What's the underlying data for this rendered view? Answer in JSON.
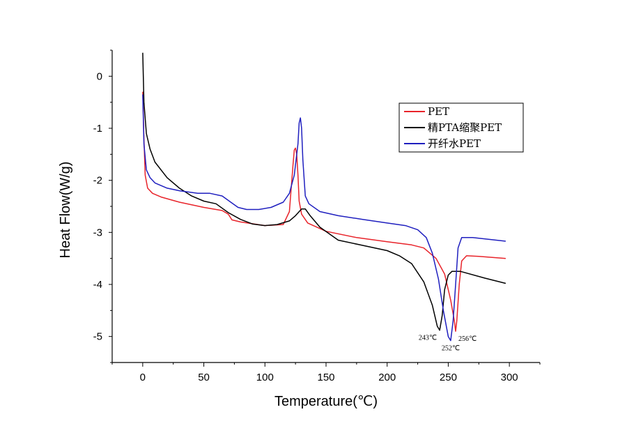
{
  "chart_data": {
    "type": "line",
    "xlabel": "Temperature(℃)",
    "ylabel": "Heat Flow(W/g)",
    "xlim": [
      -25,
      325
    ],
    "ylim": [
      -5.5,
      0.5
    ],
    "xticks": [
      0,
      50,
      100,
      150,
      200,
      250,
      300
    ],
    "yticks": [
      0,
      -1,
      -2,
      -3,
      -4,
      -5
    ],
    "legend_position": "top-right",
    "series": [
      {
        "name": "PET",
        "color": "#e8232a",
        "points": [
          [
            0,
            -0.3
          ],
          [
            1,
            -1.2
          ],
          [
            2,
            -1.9
          ],
          [
            4,
            -2.15
          ],
          [
            8,
            -2.25
          ],
          [
            15,
            -2.32
          ],
          [
            30,
            -2.42
          ],
          [
            50,
            -2.52
          ],
          [
            65,
            -2.58
          ],
          [
            70,
            -2.65
          ],
          [
            73,
            -2.76
          ],
          [
            80,
            -2.8
          ],
          [
            100,
            -2.87
          ],
          [
            115,
            -2.85
          ],
          [
            120,
            -2.6
          ],
          [
            123,
            -1.7
          ],
          [
            124,
            -1.42
          ],
          [
            125,
            -1.38
          ],
          [
            126,
            -1.5
          ],
          [
            127,
            -1.9
          ],
          [
            128,
            -2.4
          ],
          [
            130,
            -2.65
          ],
          [
            135,
            -2.82
          ],
          [
            150,
            -2.98
          ],
          [
            175,
            -3.1
          ],
          [
            200,
            -3.18
          ],
          [
            220,
            -3.24
          ],
          [
            230,
            -3.3
          ],
          [
            240,
            -3.5
          ],
          [
            247,
            -3.8
          ],
          [
            252,
            -4.3
          ],
          [
            255,
            -4.7
          ],
          [
            256,
            -4.9
          ],
          [
            257,
            -4.7
          ],
          [
            259,
            -4.0
          ],
          [
            261,
            -3.55
          ],
          [
            265,
            -3.45
          ],
          [
            275,
            -3.46
          ],
          [
            297,
            -3.5
          ]
        ]
      },
      {
        "name": "精PTA缩聚PET",
        "color": "#000000",
        "points": [
          [
            0,
            0.45
          ],
          [
            1,
            -0.5
          ],
          [
            3,
            -1.1
          ],
          [
            6,
            -1.4
          ],
          [
            10,
            -1.65
          ],
          [
            20,
            -1.95
          ],
          [
            30,
            -2.15
          ],
          [
            40,
            -2.3
          ],
          [
            50,
            -2.4
          ],
          [
            60,
            -2.45
          ],
          [
            70,
            -2.62
          ],
          [
            80,
            -2.75
          ],
          [
            90,
            -2.84
          ],
          [
            100,
            -2.87
          ],
          [
            110,
            -2.85
          ],
          [
            120,
            -2.78
          ],
          [
            125,
            -2.68
          ],
          [
            130,
            -2.55
          ],
          [
            133,
            -2.55
          ],
          [
            137,
            -2.68
          ],
          [
            145,
            -2.9
          ],
          [
            160,
            -3.15
          ],
          [
            180,
            -3.25
          ],
          [
            200,
            -3.35
          ],
          [
            210,
            -3.45
          ],
          [
            220,
            -3.6
          ],
          [
            230,
            -3.95
          ],
          [
            237,
            -4.4
          ],
          [
            241,
            -4.8
          ],
          [
            243,
            -4.88
          ],
          [
            245,
            -4.6
          ],
          [
            247,
            -4.1
          ],
          [
            250,
            -3.82
          ],
          [
            253,
            -3.75
          ],
          [
            260,
            -3.75
          ],
          [
            280,
            -3.88
          ],
          [
            297,
            -3.98
          ]
        ]
      },
      {
        "name": "开纤水PET",
        "color": "#1f1fbf",
        "points": [
          [
            0,
            -0.35
          ],
          [
            1,
            -1.3
          ],
          [
            3,
            -1.8
          ],
          [
            6,
            -1.95
          ],
          [
            10,
            -2.05
          ],
          [
            20,
            -2.15
          ],
          [
            30,
            -2.2
          ],
          [
            45,
            -2.25
          ],
          [
            55,
            -2.25
          ],
          [
            65,
            -2.3
          ],
          [
            72,
            -2.42
          ],
          [
            78,
            -2.52
          ],
          [
            85,
            -2.56
          ],
          [
            95,
            -2.56
          ],
          [
            105,
            -2.52
          ],
          [
            115,
            -2.42
          ],
          [
            120,
            -2.25
          ],
          [
            124,
            -1.9
          ],
          [
            127,
            -1.3
          ],
          [
            128,
            -0.9
          ],
          [
            129,
            -0.8
          ],
          [
            130,
            -1.0
          ],
          [
            131,
            -1.6
          ],
          [
            133,
            -2.3
          ],
          [
            136,
            -2.45
          ],
          [
            145,
            -2.6
          ],
          [
            160,
            -2.68
          ],
          [
            180,
            -2.75
          ],
          [
            200,
            -2.82
          ],
          [
            215,
            -2.87
          ],
          [
            225,
            -2.95
          ],
          [
            232,
            -3.1
          ],
          [
            237,
            -3.4
          ],
          [
            242,
            -3.9
          ],
          [
            246,
            -4.5
          ],
          [
            250,
            -5.0
          ],
          [
            252,
            -5.08
          ],
          [
            254,
            -4.7
          ],
          [
            256,
            -4.0
          ],
          [
            258,
            -3.3
          ],
          [
            261,
            -3.1
          ],
          [
            270,
            -3.1
          ],
          [
            297,
            -3.17
          ]
        ]
      }
    ],
    "annotations": [
      {
        "text": "243℃",
        "x": 243,
        "y": -4.88
      },
      {
        "text": "256℃",
        "x": 256,
        "y": -4.9
      },
      {
        "text": "252℃",
        "x": 252,
        "y": -5.08
      }
    ]
  }
}
